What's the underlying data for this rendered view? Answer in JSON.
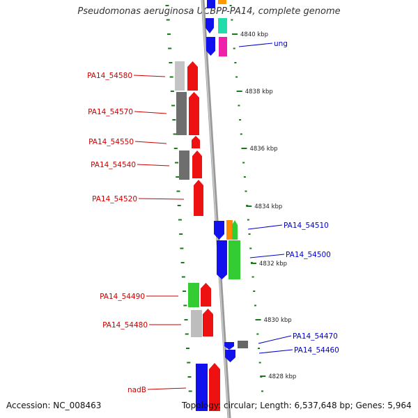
{
  "title": "Pseudomonas aeruginosa UCBPP-PA14, complete genome",
  "footer": {
    "accession": "Accession: NC_008463",
    "summary": "Topology: circular; Length: 6,537,648 bp; Genes: 5,964"
  },
  "scale_labels": [
    "4840 kbp",
    "4838 kbp",
    "4836 kbp",
    "4834 kbp",
    "4832 kbp",
    "4830 kbp",
    "4828 kbp"
  ],
  "gene_labels_left": [
    "PA14_54580",
    "PA14_54570",
    "PA14_54550",
    "PA14_54540",
    "PA14_54520",
    "PA14_54490",
    "PA14_54480",
    "nadB"
  ],
  "gene_labels_right": [
    "ung",
    "PA14_54510",
    "PA14_54500",
    "PA14_54470",
    "PA14_54460"
  ],
  "colors": {
    "left_label": "#cc0000",
    "right_label": "#0000cc",
    "tick": "#1a7a1a",
    "backbone": "#8a8a8a",
    "red": "#ee1111",
    "blue": "#1111ee",
    "green": "#33cc33",
    "dark_gray": "#6e6e6e",
    "light_gray": "#bdbdbd",
    "orange": "#ff9900",
    "cyan": "#22ddaa",
    "magenta": "#ee22aa"
  }
}
